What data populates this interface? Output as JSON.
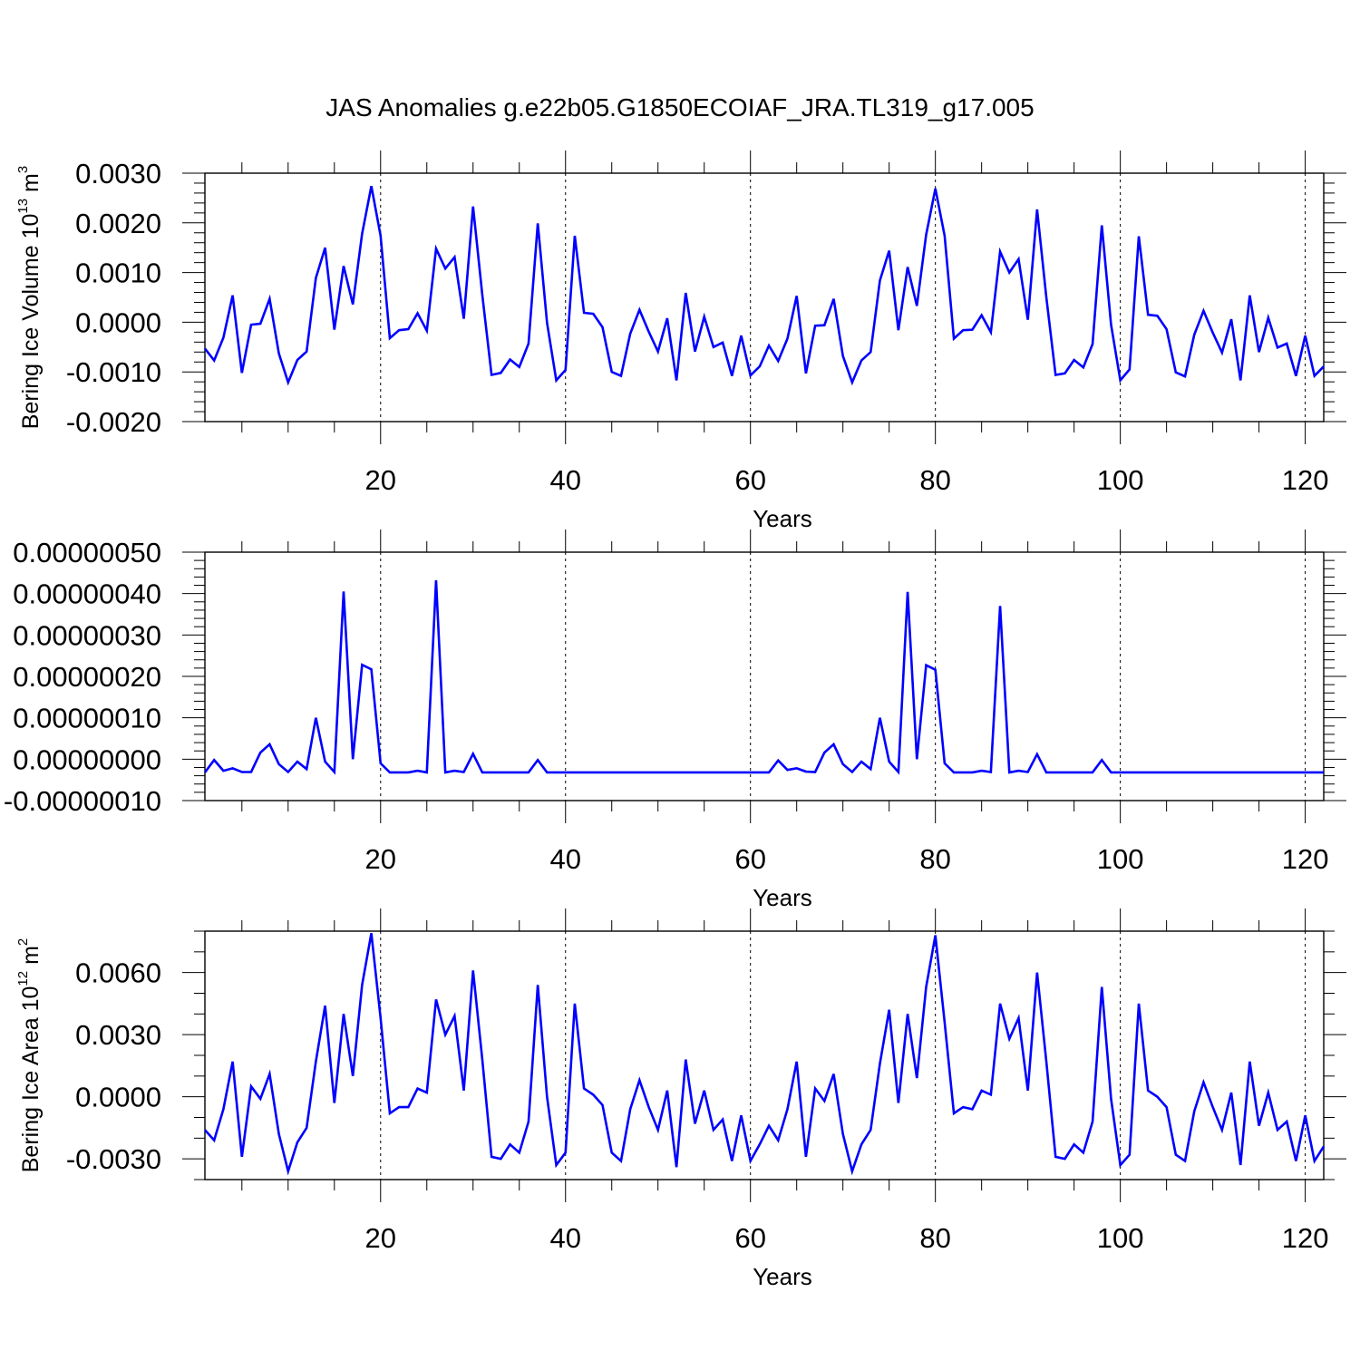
{
  "title": "JAS Anomalies g.e22b05.G1850ECOIAF_JRA.TL319_g17.005",
  "line_color": "#0000ff",
  "chart_data": [
    {
      "type": "line",
      "xlabel": "Years",
      "ylabel_main": "Bering Ice Volume 10",
      "ylabel_exp": "13",
      "ylabel_unit": " m",
      "ylabel_unit_exp": "3",
      "xlim": [
        1,
        122
      ],
      "ylim": [
        -0.002,
        0.003
      ],
      "xticks": [
        20,
        40,
        60,
        80,
        100,
        120
      ],
      "xtick_labels": [
        "20",
        "40",
        "60",
        "80",
        "100",
        "120"
      ],
      "yticks": [
        -0.002,
        -0.001,
        0.0,
        0.001,
        0.002,
        0.003
      ],
      "ytick_labels": [
        "-0.0020",
        "-0.0010",
        "0.0000",
        "0.0010",
        "0.0020",
        "0.0030"
      ],
      "grid": "dashed vertical at major x ticks",
      "series": [
        {
          "values": [
            -0.00053,
            -0.00077,
            -0.00031,
            0.00054,
            -0.00102,
            -5e-05,
            -3e-05,
            0.00047,
            -0.00063,
            -0.00121,
            -0.00076,
            -0.00059,
            0.00089,
            0.0015,
            -0.00015,
            0.00113,
            0.00036,
            0.00178,
            0.00274,
            0.00174,
            -0.00032,
            -0.00016,
            -0.00014,
            0.00018,
            -0.00017,
            0.00148,
            0.00108,
            0.00131,
            7e-05,
            0.00233,
            0.00055,
            -0.00106,
            -0.00102,
            -0.00075,
            -0.0009,
            -0.00043,
            0.00199,
            -1e-05,
            -0.00117,
            -0.00096,
            0.00174,
            0.00019,
            0.00017,
            -0.0001,
            -0.001,
            -0.00108,
            -0.00023,
            0.00025,
            -0.00019,
            -0.00059,
            8e-05,
            -0.00117,
            0.00059,
            -0.00059,
            0.00011,
            -0.0005,
            -0.00041,
            -0.00108,
            -0.00027,
            -0.00107,
            -0.00089,
            -0.00047,
            -0.00078,
            -0.00033,
            0.00053,
            -0.00103,
            -7e-05,
            -6e-05,
            0.00047,
            -0.00068,
            -0.00121,
            -0.00077,
            -0.0006,
            0.00084,
            0.00144,
            -0.00016,
            0.00111,
            0.00033,
            0.00176,
            0.00269,
            0.00174,
            -0.00033,
            -0.00016,
            -0.00015,
            0.00014,
            -0.0002,
            0.00142,
            0.001,
            0.00127,
            5e-05,
            0.00227,
            0.0005,
            -0.00106,
            -0.00103,
            -0.00076,
            -0.00091,
            -0.00044,
            0.00195,
            -5e-05,
            -0.00117,
            -0.00095,
            0.00173,
            0.00015,
            0.00013,
            -0.00014,
            -0.00101,
            -0.00109,
            -0.00025,
            0.00023,
            -0.00021,
            -0.00061,
            6e-05,
            -0.00117,
            0.00054,
            -0.0006,
            9e-05,
            -0.00051,
            -0.00043,
            -0.00108,
            -0.00027,
            -0.00108,
            -0.00089
          ]
        }
      ]
    },
    {
      "type": "line",
      "xlabel": "Years",
      "xlim": [
        1,
        122
      ],
      "ylim": [
        -1e-07,
        5e-07
      ],
      "xticks": [
        20,
        40,
        60,
        80,
        100,
        120
      ],
      "xtick_labels": [
        "20",
        "40",
        "60",
        "80",
        "100",
        "120"
      ],
      "yticks": [
        -1e-07,
        0.0,
        1e-07,
        2e-07,
        3e-07,
        4e-07,
        5e-07
      ],
      "ytick_labels": [
        "-0.00000010",
        "0.00000000",
        "0.00000010",
        "0.00000020",
        "0.00000030",
        "0.00000040",
        "0.00000050"
      ],
      "grid": "dashed vertical at major x ticks",
      "series": [
        {
          "values": [
            -3.2e-08,
            -2e-09,
            -2.8e-08,
            -2.2e-08,
            -3.1e-08,
            -3.1e-08,
            1.6e-08,
            3.6e-08,
            -1.2e-08,
            -3.1e-08,
            -6e-09,
            -2.4e-08,
            1e-07,
            -6e-09,
            -3.1e-08,
            4.05e-07,
            0,
            2.28e-07,
            2.17e-07,
            -1e-08,
            -3.2e-08,
            -3.2e-08,
            -3.2e-08,
            -2.8e-08,
            -3.2e-08,
            4.32e-07,
            -3.2e-08,
            -2.8e-08,
            -3.1e-08,
            1.3e-08,
            -3.2e-08,
            -3.2e-08,
            -3.2e-08,
            -3.2e-08,
            -3.2e-08,
            -3.2e-08,
            -2e-09,
            -3.2e-08,
            -3.2e-08,
            -3.2e-08,
            -3.2e-08,
            -3.2e-08,
            -3.2e-08,
            -3.2e-08,
            -3.2e-08,
            -3.2e-08,
            -3.2e-08,
            -3.2e-08,
            -3.2e-08,
            -3.2e-08,
            -3.2e-08,
            -3.2e-08,
            -3.2e-08,
            -3.2e-08,
            -3.2e-08,
            -3.2e-08,
            -3.2e-08,
            -3.2e-08,
            -3.2e-08,
            -3.2e-08,
            -3.2e-08,
            -3.2e-08,
            -3e-09,
            -2.6e-08,
            -2.2e-08,
            -3e-08,
            -3.1e-08,
            1.6e-08,
            3.6e-08,
            -1.2e-08,
            -3.1e-08,
            -6e-09,
            -2.4e-08,
            1e-07,
            -6e-09,
            -3.1e-08,
            4.04e-07,
            0,
            2.27e-07,
            2.16e-07,
            -1e-08,
            -3.2e-08,
            -3.2e-08,
            -3.2e-08,
            -2.8e-08,
            -3.1e-08,
            3.7e-07,
            -3.2e-08,
            -2.8e-08,
            -3.1e-08,
            1.2e-08,
            -3.2e-08,
            -3.2e-08,
            -3.2e-08,
            -3.2e-08,
            -3.2e-08,
            -3.2e-08,
            -2e-09,
            -3.2e-08,
            -3.2e-08,
            -3.2e-08,
            -3.2e-08,
            -3.2e-08,
            -3.2e-08,
            -3.2e-08,
            -3.2e-08,
            -3.2e-08,
            -3.2e-08,
            -3.2e-08,
            -3.2e-08,
            -3.2e-08,
            -3.2e-08,
            -3.2e-08,
            -3.2e-08,
            -3.2e-08,
            -3.2e-08,
            -3.2e-08,
            -3.2e-08,
            -3.2e-08,
            -3.2e-08,
            -3.2e-08,
            -3.2e-08
          ]
        }
      ]
    },
    {
      "type": "line",
      "xlabel": "Years",
      "ylabel_main": "Bering Ice Area 10",
      "ylabel_exp": "12",
      "ylabel_unit": " m",
      "ylabel_unit_exp": "2",
      "xlim": [
        1,
        122
      ],
      "ylim": [
        -0.004,
        0.008
      ],
      "xticks": [
        20,
        40,
        60,
        80,
        100,
        120
      ],
      "xtick_labels": [
        "20",
        "40",
        "60",
        "80",
        "100",
        "120"
      ],
      "yticks": [
        -0.003,
        0.0,
        0.003,
        0.006
      ],
      "ytick_labels": [
        "-0.0030",
        "0.0000",
        "0.0030",
        "0.0060"
      ],
      "grid": "dashed vertical at major x ticks",
      "series": [
        {
          "values": [
            -0.0016,
            -0.0021,
            -0.0006,
            0.0017,
            -0.0029,
            0.0005,
            -0.0001,
            0.0011,
            -0.0018,
            -0.0036,
            -0.0022,
            -0.0015,
            0.0017,
            0.0044,
            -0.0003,
            0.004,
            0.001,
            0.0054,
            0.0079,
            0.0038,
            -0.0008,
            -0.0005,
            -0.0005,
            0.0004,
            0.0002,
            0.0047,
            0.003,
            0.0039,
            0.0003,
            0.0061,
            0.0018,
            -0.0029,
            -0.003,
            -0.0023,
            -0.0027,
            -0.0012,
            0.0054,
            0,
            -0.0033,
            -0.0027,
            0.0045,
            0.0004,
            0.0001,
            -0.0004,
            -0.0027,
            -0.0031,
            -0.0006,
            0.0008,
            -0.0005,
            -0.0016,
            0.0003,
            -0.0034,
            0.0018,
            -0.0013,
            0.0003,
            -0.0016,
            -0.0011,
            -0.0031,
            -0.0009,
            -0.0031,
            -0.0023,
            -0.0014,
            -0.0021,
            -0.0006,
            0.0017,
            -0.0029,
            0.0004,
            -0.0002,
            0.0011,
            -0.0018,
            -0.0036,
            -0.0023,
            -0.0016,
            0.0016,
            0.0042,
            -0.0003,
            0.004,
            0.0009,
            0.0053,
            0.0078,
            0.0036,
            -0.0008,
            -0.0005,
            -0.0006,
            0.0003,
            0.0001,
            0.0045,
            0.0028,
            0.0038,
            0.0003,
            0.006,
            0.0017,
            -0.0029,
            -0.003,
            -0.0023,
            -0.0027,
            -0.0012,
            0.0053,
            -0.0001,
            -0.0033,
            -0.0028,
            0.0045,
            0.0003,
            0,
            -0.0005,
            -0.0028,
            -0.0031,
            -0.0007,
            0.0007,
            -0.0005,
            -0.0016,
            0.0002,
            -0.0033,
            0.0017,
            -0.0014,
            0.0002,
            -0.0016,
            -0.0012,
            -0.0031,
            -0.0009,
            -0.0031,
            -0.0024
          ]
        }
      ]
    }
  ]
}
